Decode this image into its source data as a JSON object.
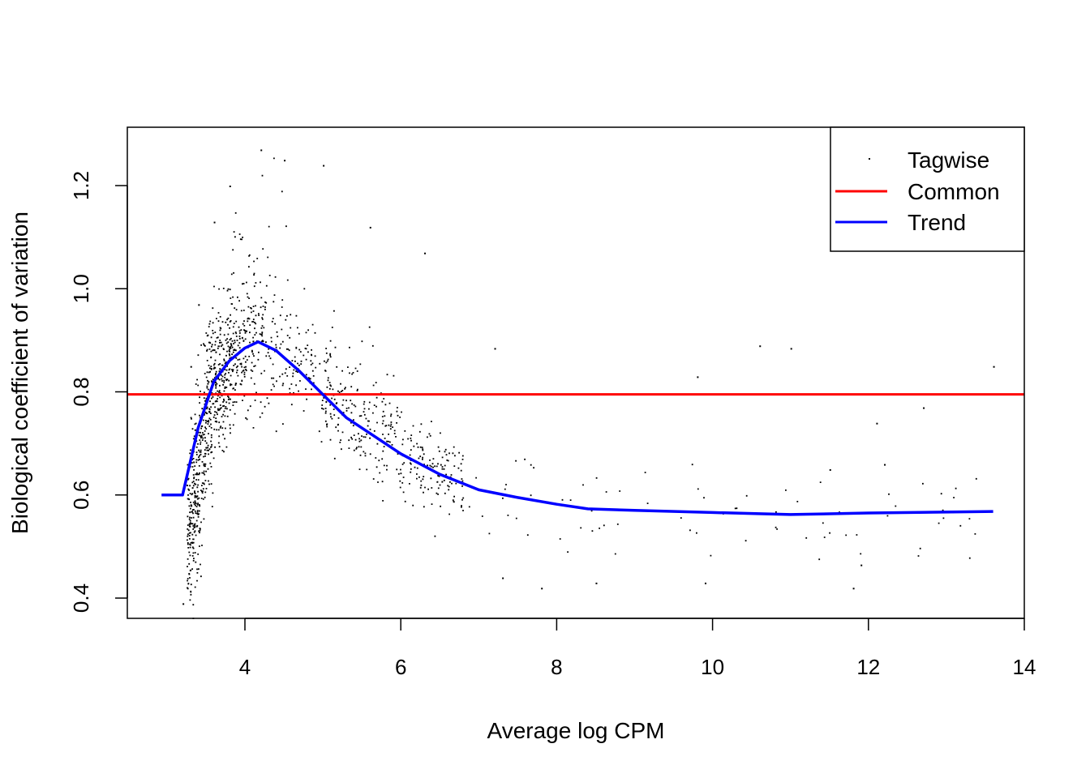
{
  "chart_data": {
    "type": "scatter",
    "title": "",
    "xlabel": "Average log CPM",
    "ylabel": "Biological coefficient of variation",
    "xlim": [
      2.5,
      14
    ],
    "ylim": [
      0.35,
      1.3
    ],
    "x_ticks": [
      4,
      6,
      8,
      10,
      12,
      14
    ],
    "y_ticks": [
      0.4,
      0.6,
      0.8,
      1.0,
      1.2
    ],
    "x_tick_labels": [
      "4",
      "6",
      "8",
      "10",
      "12",
      "14"
    ],
    "y_tick_labels": [
      "0.4",
      "0.6",
      "0.8",
      "1.0",
      "1.2"
    ],
    "legend": {
      "position": "top-right",
      "entries": [
        {
          "label": "Tagwise",
          "style": "points",
          "color": "#000000"
        },
        {
          "label": "Common",
          "style": "line",
          "color": "#ff0000"
        },
        {
          "label": "Trend",
          "style": "line",
          "color": "#0000ff"
        }
      ]
    },
    "series": [
      {
        "name": "Common",
        "type": "hline",
        "color": "#ff0000",
        "y": 0.795
      },
      {
        "name": "Trend",
        "type": "line",
        "color": "#0000ff",
        "x": [
          2.93,
          3.2,
          3.4,
          3.6,
          3.8,
          4.0,
          4.17,
          4.4,
          4.7,
          5.0,
          5.3,
          5.6,
          6.0,
          6.5,
          7.0,
          7.5,
          8.0,
          8.4,
          9.0,
          10.0,
          11.0,
          12.0,
          13.6
        ],
        "y": [
          0.6,
          0.6,
          0.73,
          0.82,
          0.86,
          0.885,
          0.897,
          0.88,
          0.84,
          0.795,
          0.75,
          0.72,
          0.68,
          0.64,
          0.61,
          0.595,
          0.582,
          0.573,
          0.57,
          0.566,
          0.562,
          0.565,
          0.568
        ]
      },
      {
        "name": "Tagwise",
        "type": "points",
        "color": "#000000",
        "description_of_density": "approximately 15000 gene-wise dispersion points; dense cloud between log CPM 3.2 and 7 peaking near 4.2 with BCV 0.7-1.27, thinning out towards high CPM where BCV ranges 0.42-0.88",
        "sample_points": [
          {
            "x": 3.2,
            "y": 0.39
          },
          {
            "x": 3.25,
            "y": 0.62
          },
          {
            "x": 3.3,
            "y": 0.85
          },
          {
            "x": 3.4,
            "y": 0.97
          },
          {
            "x": 3.6,
            "y": 1.13
          },
          {
            "x": 3.8,
            "y": 1.2
          },
          {
            "x": 4.2,
            "y": 1.27
          },
          {
            "x": 4.5,
            "y": 1.25
          },
          {
            "x": 5.0,
            "y": 1.24
          },
          {
            "x": 5.6,
            "y": 1.12
          },
          {
            "x": 6.3,
            "y": 1.07
          },
          {
            "x": 7.2,
            "y": 0.885
          },
          {
            "x": 7.3,
            "y": 0.44
          },
          {
            "x": 7.8,
            "y": 0.42
          },
          {
            "x": 8.5,
            "y": 0.43
          },
          {
            "x": 9.8,
            "y": 0.83
          },
          {
            "x": 9.9,
            "y": 0.43
          },
          {
            "x": 10.6,
            "y": 0.89
          },
          {
            "x": 11.0,
            "y": 0.885
          },
          {
            "x": 11.5,
            "y": 0.65
          },
          {
            "x": 11.8,
            "y": 0.42
          },
          {
            "x": 11.9,
            "y": 0.465
          },
          {
            "x": 12.1,
            "y": 0.74
          },
          {
            "x": 12.2,
            "y": 0.66
          },
          {
            "x": 12.7,
            "y": 0.77
          },
          {
            "x": 13.6,
            "y": 0.85
          }
        ]
      }
    ]
  }
}
